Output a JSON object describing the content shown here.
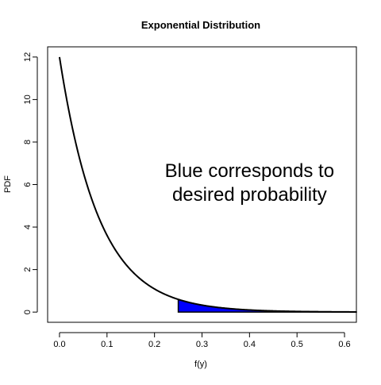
{
  "chart_data": {
    "type": "area",
    "title": "Exponential Distribution",
    "xlabel": "f(y)",
    "ylabel": "PDF",
    "xlim": [
      -0.025,
      0.625
    ],
    "ylim": [
      -0.48,
      12.48
    ],
    "x_ticks": [
      0.0,
      0.1,
      0.2,
      0.3,
      0.4,
      0.5,
      0.6
    ],
    "x_tick_labels": [
      "0.0",
      "0.1",
      "0.2",
      "0.3",
      "0.4",
      "0.5",
      "0.6"
    ],
    "y_ticks": [
      0,
      2,
      4,
      6,
      8,
      10,
      12
    ],
    "y_tick_labels": [
      "0",
      "2",
      "4",
      "6",
      "8",
      "10",
      "12"
    ],
    "grid": false,
    "series": [
      {
        "rate": 12,
        "x": [
          0.0,
          0.025,
          0.05,
          0.075,
          0.1,
          0.125,
          0.15,
          0.175,
          0.2,
          0.225,
          0.25,
          0.275,
          0.3,
          0.325,
          0.35,
          0.375,
          0.4,
          0.425,
          0.45,
          0.475,
          0.5,
          0.525,
          0.55,
          0.575,
          0.6,
          0.625
        ],
        "y": [
          12.0,
          8.89,
          6.59,
          4.88,
          3.61,
          2.68,
          1.98,
          1.47,
          1.09,
          0.81,
          0.6,
          0.44,
          0.33,
          0.24,
          0.18,
          0.13,
          0.1,
          0.07,
          0.05,
          0.04,
          0.03,
          0.02,
          0.02,
          0.01,
          0.01,
          0.01
        ],
        "color": "#000000"
      }
    ],
    "shaded_region": {
      "x_from": 0.25,
      "x_to": 0.625,
      "fill": "#0000ff"
    },
    "annotations": [
      {
        "lines": [
          "Blue corresponds to",
          "desired probability"
        ],
        "x": 0.4,
        "y": 6.1
      }
    ]
  }
}
